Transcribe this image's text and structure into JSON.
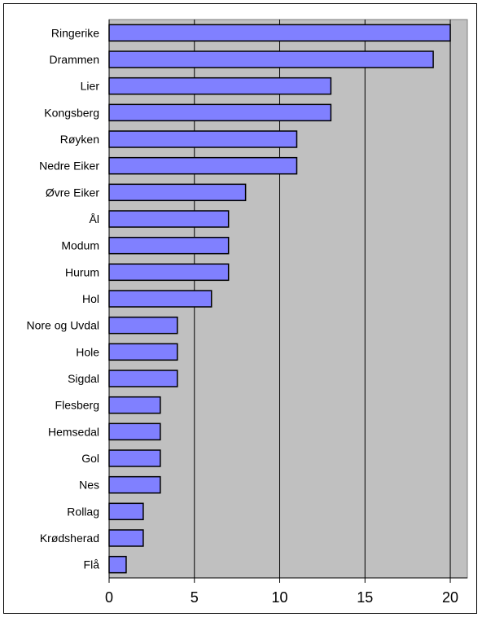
{
  "chart_data": {
    "type": "bar",
    "orientation": "horizontal",
    "categories": [
      "Ringerike",
      "Drammen",
      "Lier",
      "Kongsberg",
      "Røyken",
      "Nedre Eiker",
      "Øvre Eiker",
      "Ål",
      "Modum",
      "Hurum",
      "Hol",
      "Nore og Uvdal",
      "Hole",
      "Sigdal",
      "Flesberg",
      "Hemsedal",
      "Gol",
      "Nes",
      "Rollag",
      "Krødsherad",
      "Flå"
    ],
    "values": [
      20,
      19,
      13,
      13,
      11,
      11,
      8,
      7,
      7,
      7,
      6,
      4,
      4,
      4,
      3,
      3,
      3,
      3,
      2,
      2,
      1
    ],
    "xlim": [
      0,
      21
    ],
    "xticks": [
      0,
      5,
      10,
      15,
      20
    ],
    "grid": "vertical",
    "colors": {
      "bar_fill": "#8080ff",
      "bar_stroke": "#000000",
      "plot_bg": "#c0c0c0",
      "gridline": "#000000"
    }
  }
}
